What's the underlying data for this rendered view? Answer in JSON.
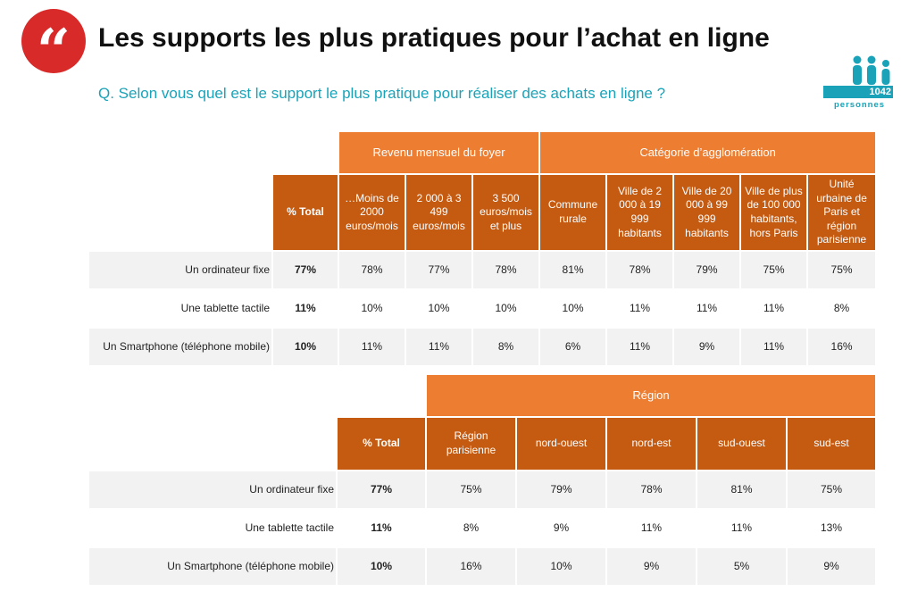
{
  "header": {
    "logo_glyph": "“",
    "title": "Les supports les plus pratiques pour l’achat en ligne",
    "question": "Q. Selon vous quel est le support le plus pratique pour réaliser des achats en ligne ?"
  },
  "badge": {
    "icon": "people-icon",
    "count": "1042",
    "label": "personnes"
  },
  "colors": {
    "header_light": "#ed7d31",
    "header_dark": "#c55a11",
    "row_shade": "#f2f2f2",
    "accent": "#1aa3b8",
    "logo": "#d92a2a"
  },
  "table1": {
    "group1": "Revenu mensuel du foyer",
    "group2": "Catégorie d’agglomération",
    "total_label": "% Total",
    "columns": [
      "…Moins de 2000 euros/mois",
      "2 000 à 3 499 euros/mois",
      "3 500 euros/mois et plus",
      "Commune rurale",
      "Ville de 2 000 à 19 999 habitants",
      "Ville de 20 000 à 99 999 habitants",
      "Ville de plus de 100 000 habitants, hors Paris",
      "Unité urbaine de Paris et région parisienne"
    ],
    "rows": [
      {
        "label": "Un ordinateur fixe",
        "total": "77%",
        "values": [
          "78%",
          "77%",
          "78%",
          "81%",
          "78%",
          "79%",
          "75%",
          "75%"
        ]
      },
      {
        "label": "Une tablette tactile",
        "total": "11%",
        "values": [
          "10%",
          "10%",
          "10%",
          "10%",
          "11%",
          "11%",
          "11%",
          "8%"
        ]
      },
      {
        "label": "Un Smartphone (téléphone mobile)",
        "total": "10%",
        "values": [
          "11%",
          "11%",
          "8%",
          "6%",
          "11%",
          "9%",
          "11%",
          "16%"
        ]
      }
    ]
  },
  "table2": {
    "group": "Région",
    "total_label": "% Total",
    "columns": [
      "Région parisienne",
      "nord-ouest",
      "nord-est",
      "sud-ouest",
      "sud-est"
    ],
    "rows": [
      {
        "label": "Un ordinateur fixe",
        "total": "77%",
        "values": [
          "75%",
          "79%",
          "78%",
          "81%",
          "75%"
        ]
      },
      {
        "label": "Une tablette tactile",
        "total": "11%",
        "values": [
          "8%",
          "9%",
          "11%",
          "11%",
          "13%"
        ]
      },
      {
        "label": "Un Smartphone (téléphone mobile)",
        "total": "10%",
        "values": [
          "16%",
          "10%",
          "9%",
          "5%",
          "9%"
        ]
      }
    ]
  }
}
